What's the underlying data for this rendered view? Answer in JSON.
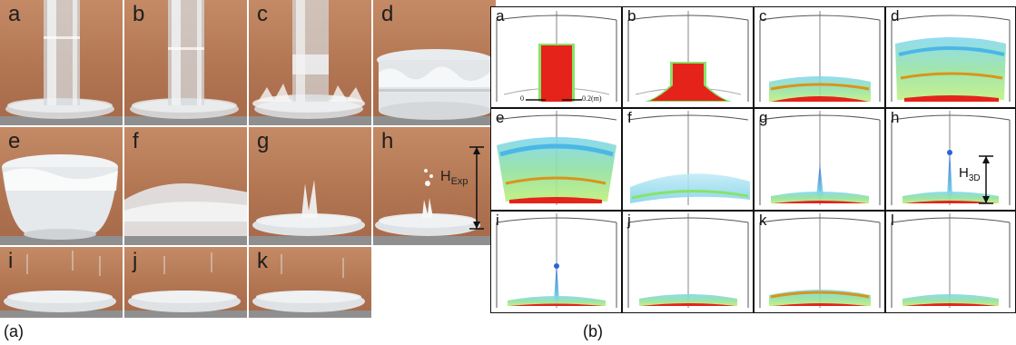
{
  "captions": {
    "left": "(a)",
    "right": "(b)"
  },
  "experiment": {
    "labels": [
      "a",
      "b",
      "c",
      "d",
      "e",
      "f",
      "g",
      "h",
      "i",
      "j",
      "k"
    ],
    "height_label": {
      "main": "H",
      "sub": "Exp"
    }
  },
  "simulation": {
    "labels": [
      "a",
      "b",
      "c",
      "d",
      "e",
      "f",
      "g",
      "h",
      "i",
      "j",
      "k",
      "l"
    ],
    "scale_bar": {
      "start": "0",
      "end": "0.2(m)"
    },
    "height_label": {
      "main": "H",
      "sub": "3D"
    }
  }
}
